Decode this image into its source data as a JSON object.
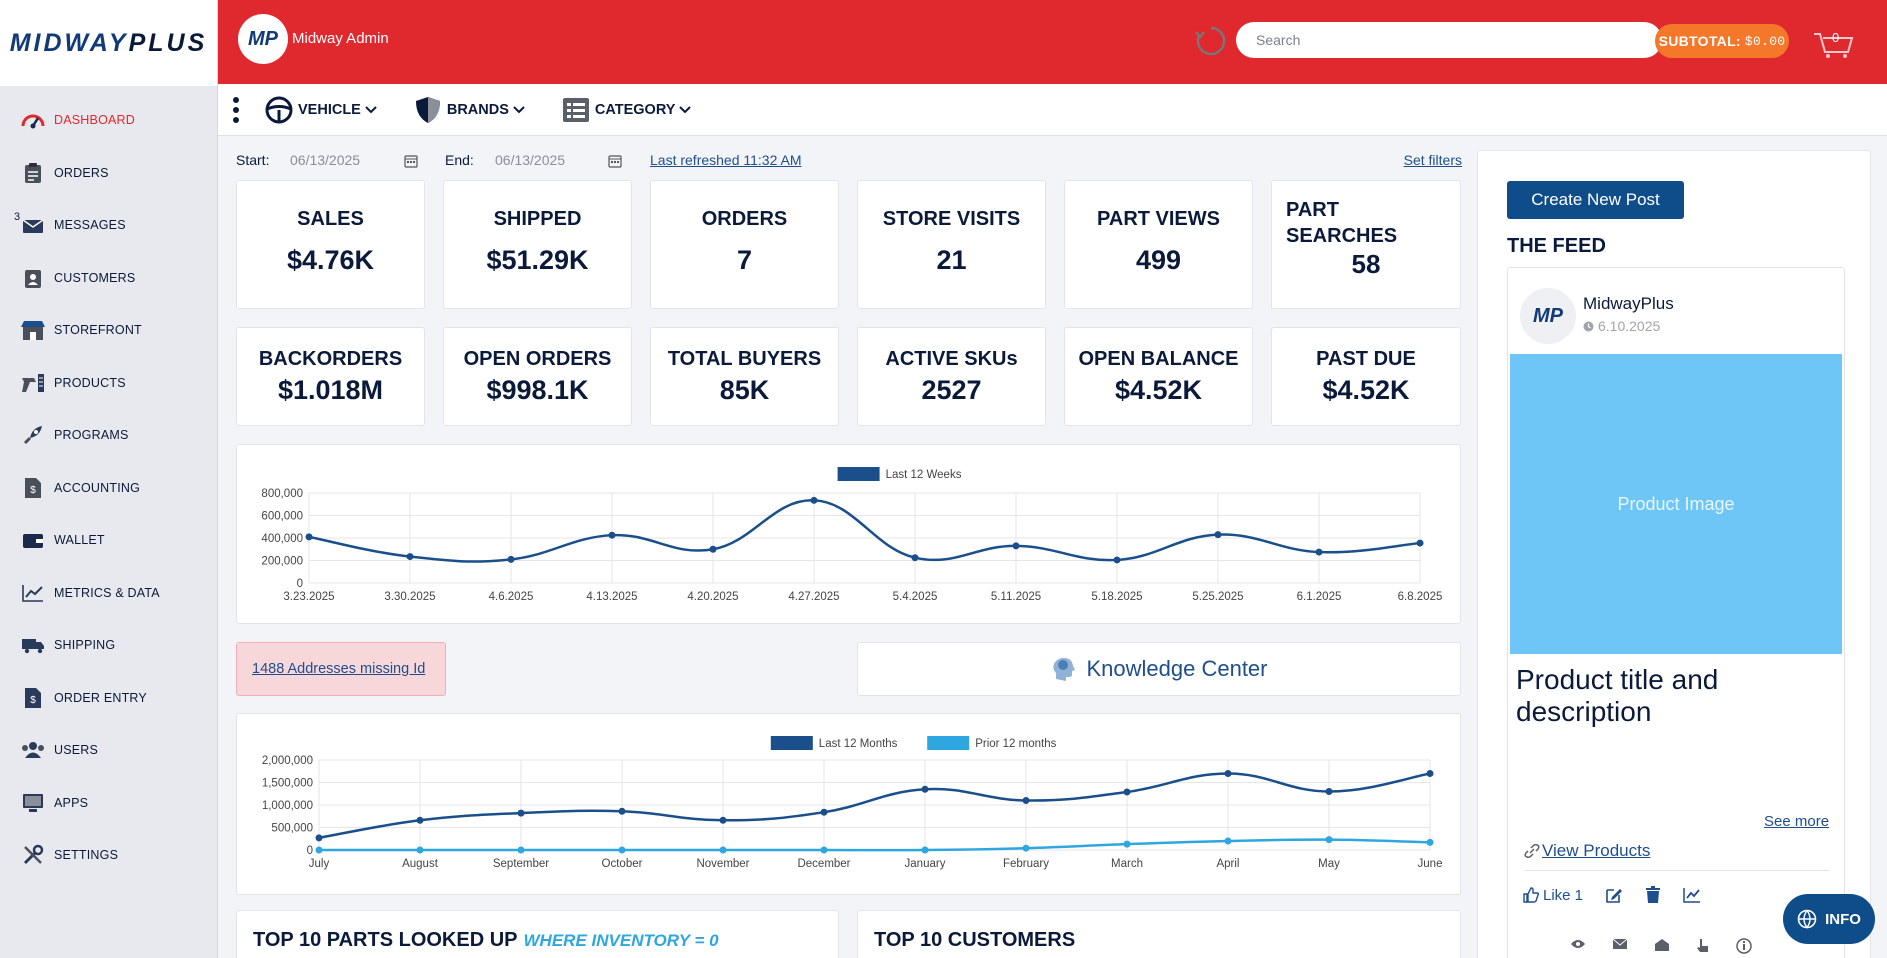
{
  "logo": {
    "text_a": "MIDWAY",
    "text_b": "PLUS"
  },
  "sidebar": {
    "items": [
      {
        "label": "DASHBOARD",
        "icon": "speedometer-icon"
      },
      {
        "label": "ORDERS",
        "icon": "clipboard-icon"
      },
      {
        "label": "MESSAGES",
        "icon": "envelope-icon",
        "badge": "3"
      },
      {
        "label": "CUSTOMERS",
        "icon": "customer-badge-icon"
      },
      {
        "label": "STOREFRONT",
        "icon": "store-icon"
      },
      {
        "label": "PRODUCTS",
        "icon": "spray-products-icon"
      },
      {
        "label": "PROGRAMS",
        "icon": "rocket-icon"
      },
      {
        "label": "ACCOUNTING",
        "icon": "ledger-icon"
      },
      {
        "label": "WALLET",
        "icon": "wallet-icon"
      },
      {
        "label": "METRICS & DATA",
        "icon": "line-chart-icon"
      },
      {
        "label": "SHIPPING",
        "icon": "truck-icon"
      },
      {
        "label": "ORDER ENTRY",
        "icon": "order-form-icon"
      },
      {
        "label": "USERS",
        "icon": "users-icon"
      },
      {
        "label": "APPS",
        "icon": "monitor-icon"
      },
      {
        "label": "SETTINGS",
        "icon": "tools-icon"
      }
    ]
  },
  "header": {
    "avatar": "MP",
    "admin_name": "Midway Admin",
    "search_placeholder": "Search",
    "subtotal_label": "SUBTOTAL:",
    "subtotal_value": "$0.00",
    "cart_count": "0"
  },
  "toolbar": {
    "vehicle": "VEHICLE",
    "brands": "BRANDS",
    "category": "CATEGORY"
  },
  "filters": {
    "start_label": "Start:",
    "start_date": "06/13/2025",
    "end_label": "End:",
    "end_date": "06/13/2025",
    "last_refreshed": "Last refreshed 11:32 AM",
    "set_filters": "Set filters"
  },
  "stats_row1": [
    {
      "title": "SALES",
      "value": "$4.76K"
    },
    {
      "title": "SHIPPED",
      "value": "$51.29K"
    },
    {
      "title": "ORDERS",
      "value": "7"
    },
    {
      "title": "STORE VISITS",
      "value": "21"
    },
    {
      "title": "PART VIEWS",
      "value": "499"
    },
    {
      "title": "PART\nSEARCHES",
      "value": "58"
    }
  ],
  "stats_row2": [
    {
      "title": "BACKORDERS",
      "value": "$1.018M"
    },
    {
      "title": "OPEN ORDERS",
      "value": "$998.1K"
    },
    {
      "title": "TOTAL BUYERS",
      "value": "85K"
    },
    {
      "title": "ACTIVE SKUs",
      "value": "2527"
    },
    {
      "title": "OPEN BALANCE",
      "value": "$4.52K"
    },
    {
      "title": "PAST DUE",
      "value": "$4.52K"
    }
  ],
  "alert": {
    "text": "1488 Addresses missing Id"
  },
  "knowledge_center": {
    "label": "Knowledge Center"
  },
  "bottom": {
    "parts_title": "TOP 10 PARTS LOOKED UP",
    "parts_sub": "WHERE INVENTORY = 0",
    "customers_title": "TOP 10 CUSTOMERS"
  },
  "feed": {
    "create_label": "Create New Post",
    "title": "THE FEED",
    "post": {
      "avatar": "MP",
      "author": "MidwayPlus",
      "date": "6.10.2025",
      "image_label": "Product Image",
      "description": "Product title and description",
      "see_more": "See more",
      "view_products": "View Products",
      "like": "Like 1"
    }
  },
  "info_button": "INFO",
  "colors": {
    "header_red": "#e0292f",
    "navy": "#0f4c8a",
    "series_dark": "#1a4f8b",
    "series_light": "#2ea6e0",
    "subtotal_orange": "#f5772a"
  },
  "chart_data": [
    {
      "type": "line",
      "legend": [
        "Last 12 Weeks"
      ],
      "legend_position": "top-center",
      "x": [
        "3.23.2025",
        "3.30.2025",
        "4.6.2025",
        "4.13.2025",
        "4.20.2025",
        "4.27.2025",
        "5.4.2025",
        "5.11.2025",
        "5.18.2025",
        "5.25.2025",
        "6.1.2025",
        "6.8.2025"
      ],
      "series": [
        {
          "name": "Last 12 Weeks",
          "values": [
            410000,
            235000,
            210000,
            425000,
            300000,
            735000,
            225000,
            330000,
            205000,
            430000,
            275000,
            355000
          ]
        }
      ],
      "ylim": [
        0,
        800000
      ],
      "yticks": [
        0,
        200000,
        400000,
        600000,
        800000
      ],
      "ytick_labels": [
        "0",
        "200,000",
        "400,000",
        "600,000",
        "800,000"
      ],
      "grid": true
    },
    {
      "type": "line",
      "legend": [
        "Last 12 Months",
        "Prior 12 months"
      ],
      "legend_position": "top-center",
      "x": [
        "July",
        "August",
        "September",
        "October",
        "November",
        "December",
        "January",
        "February",
        "March",
        "April",
        "May",
        "June"
      ],
      "series": [
        {
          "name": "Last 12 Months",
          "values": [
            270000,
            660000,
            820000,
            860000,
            660000,
            840000,
            1350000,
            1100000,
            1290000,
            1700000,
            1300000,
            1700000
          ]
        },
        {
          "name": "Prior 12 months",
          "values": [
            0,
            0,
            0,
            0,
            0,
            0,
            0,
            40000,
            130000,
            200000,
            230000,
            170000
          ]
        }
      ],
      "ylim": [
        0,
        2000000
      ],
      "yticks": [
        0,
        500000,
        1000000,
        1500000,
        2000000
      ],
      "ytick_labels": [
        "0",
        "500,000",
        "1,000,000",
        "1,500,000",
        "2,000,000"
      ],
      "grid": true
    }
  ]
}
